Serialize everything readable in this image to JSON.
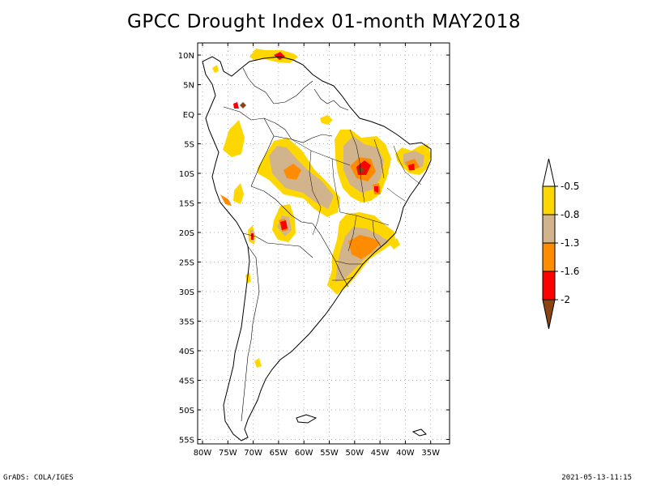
{
  "title": "GPCC Drought Index 01-month MAY2018",
  "map": {
    "lat_labels": [
      "10N",
      "5N",
      "EQ",
      "5S",
      "10S",
      "15S",
      "20S",
      "25S",
      "30S",
      "35S",
      "40S",
      "45S",
      "50S",
      "55S"
    ],
    "lon_labels": [
      "80W",
      "75W",
      "70W",
      "65W",
      "60W",
      "55W",
      "50W",
      "45W",
      "40W",
      "35W"
    ],
    "region": "South America",
    "lat_range": [
      -55,
      10
    ],
    "lon_range": [
      -80,
      -35
    ]
  },
  "legend": {
    "labels": [
      "-0.5",
      "-0.8",
      "-1.3",
      "-1.6",
      "-2"
    ],
    "colors": [
      "#ffffff",
      "#ffd700",
      "#d2b48c",
      "#ff8c00",
      "#ff0000",
      "#8b4513"
    ]
  },
  "footer": {
    "left": "GrADS: COLA/IGES",
    "right": "2021-05-13-11:15"
  }
}
